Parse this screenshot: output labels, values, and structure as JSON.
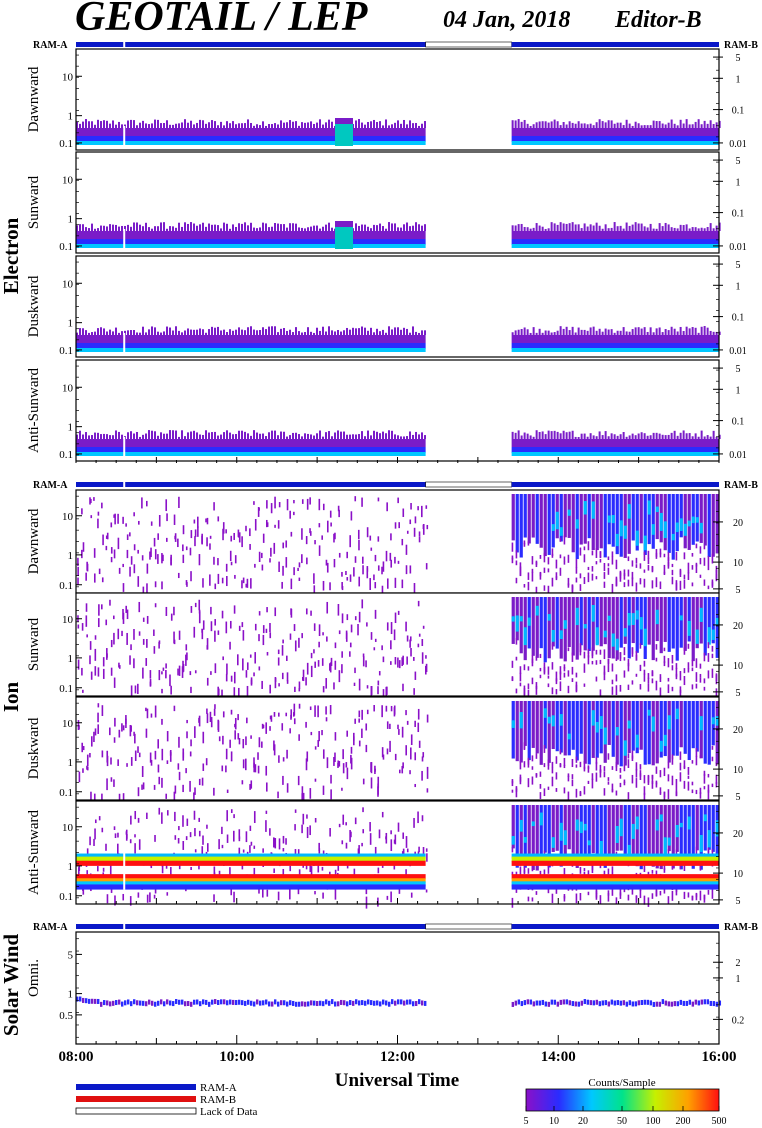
{
  "header": {
    "title": "GEOTAIL / LEP",
    "date": "04 Jan, 2018",
    "editor": "Editor-B"
  },
  "ram": {
    "left_label": "RAM-A",
    "right_label": "RAM-B"
  },
  "groups": [
    {
      "name": "Electron",
      "panels": [
        "Dawnward",
        "Sunward",
        "Duskward",
        "Anti-Sunward"
      ]
    },
    {
      "name": "Ion",
      "panels": [
        "Dawnward",
        "Sunward",
        "Duskward",
        "Anti-Sunward"
      ]
    },
    {
      "name": "Solar Wind",
      "panels": [
        "Omni."
      ]
    }
  ],
  "x_axis": {
    "label": "Universal Time",
    "ticks": [
      "08:00",
      "10:00",
      "12:00",
      "14:00",
      "16:00"
    ]
  },
  "legend": {
    "items": [
      {
        "label": "RAM-A",
        "color": "#0a18c8"
      },
      {
        "label": "RAM-B",
        "color": "#e01010"
      },
      {
        "label": "Lack of Data",
        "color": "#ffffff"
      }
    ]
  },
  "colorbar": {
    "title": "Counts/Sample",
    "ticks": [
      "5",
      "10",
      "20",
      "50",
      "100",
      "200",
      "500"
    ]
  },
  "chart_data": {
    "type": "heatmap",
    "x_range_hours": [
      8,
      16
    ],
    "data_gap_hours": [
      12.35,
      13.42
    ],
    "ram_a_marker_hour": 8.6,
    "electron_left_ticks": [
      "10",
      "1",
      "0.1"
    ],
    "electron_right_ticks": [
      "5",
      "1",
      "0.1",
      "0.01"
    ],
    "ion_left_ticks": [
      "10",
      "1",
      "0.1"
    ],
    "ion_right_ticks": [
      "20",
      "10",
      "5"
    ],
    "solar_wind_left_ticks": [
      "5",
      "1",
      "0.5"
    ],
    "solar_wind_right_ticks": [
      "2",
      "1",
      "0.2"
    ],
    "ion_anti_sunward_ram_band": "RAM-B red band near 1 on left axis, about 10 on right axis",
    "colors": {
      "ram_a": "#0a18c8",
      "ram_b": "#e01010",
      "scale": [
        "#7a1cc8",
        "#2a2cff",
        "#00c8ff",
        "#00e38a",
        "#c6f000",
        "#ffa000",
        "#ff1010"
      ]
    }
  }
}
